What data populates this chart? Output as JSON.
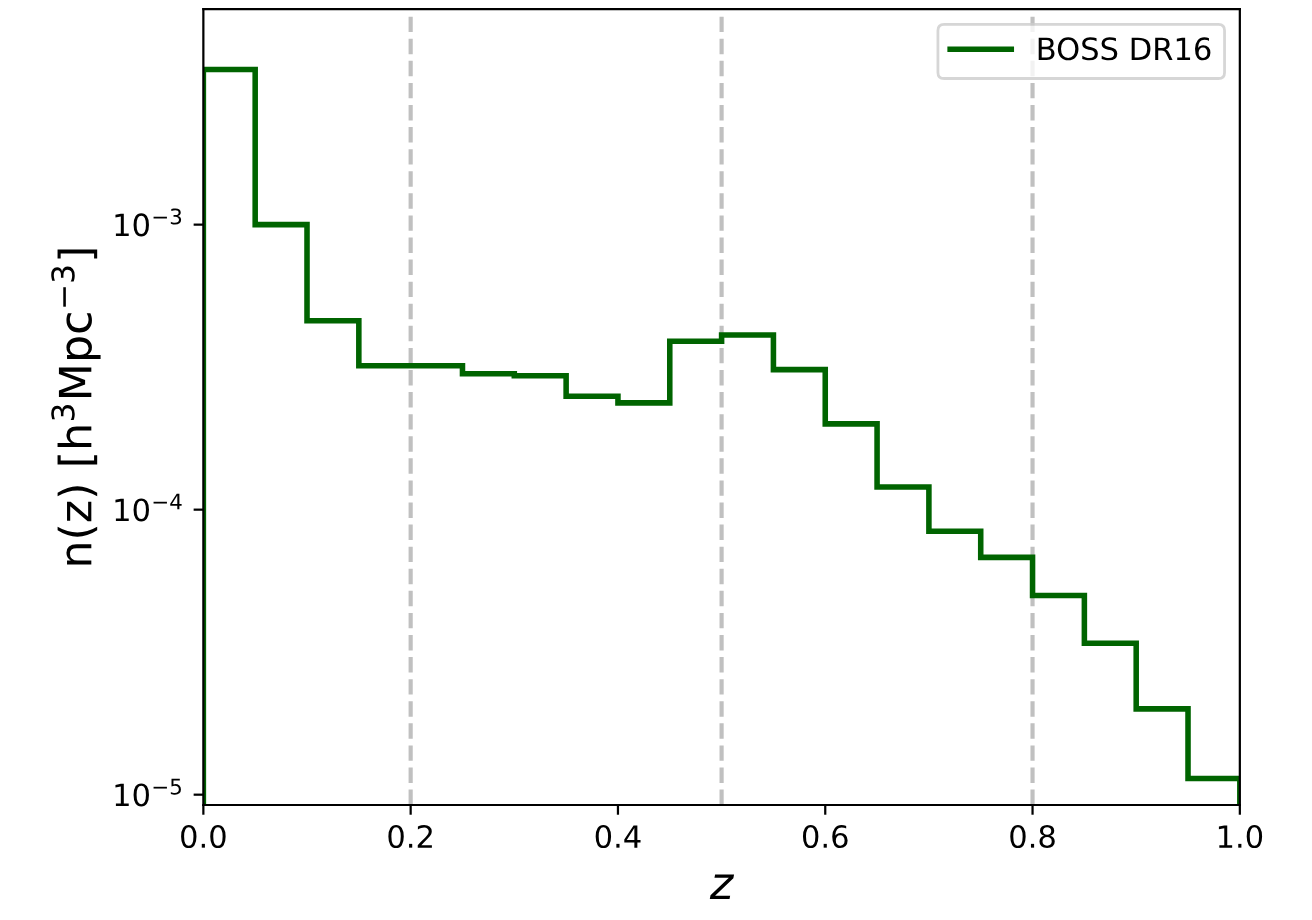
{
  "chart_data": {
    "type": "histogram",
    "xlabel": "z",
    "ylabel": "n(z) [h$^{3}$Mpc$^{−3}$]",
    "bins": [
      0.0,
      0.05,
      0.1,
      0.15,
      0.2,
      0.25,
      0.3,
      0.35,
      0.4,
      0.45,
      0.5,
      0.55,
      0.6,
      0.65,
      0.7,
      0.75,
      0.8,
      0.85,
      0.9,
      0.95,
      1.0
    ],
    "series": [
      {
        "name": "BOSS DR16",
        "color": "#006400",
        "values": [
          0.0035,
          0.001,
          0.00046,
          0.00032,
          0.00032,
          0.0003,
          0.000295,
          0.00025,
          0.000237,
          0.00039,
          0.00041,
          0.00031,
          0.0002,
          0.00012,
          8.4e-05,
          6.8e-05,
          5e-05,
          3.4e-05,
          2e-05,
          1.14e-05
        ]
      }
    ],
    "xlim": [
      0.0,
      1.0
    ],
    "ylim": [
      9.2e-06,
      0.0057
    ],
    "xticks": [
      {
        "value": 0.0,
        "label": "0.0"
      },
      0.2,
      0.4,
      0.6,
      0.8,
      {
        "value": 1.0,
        "label": "1.0"
      }
    ],
    "yticks": [
      {
        "value": 1e-05,
        "label": "10$^{−5}$"
      },
      {
        "value": 0.0001,
        "label": "10$^{−4}$"
      },
      {
        "value": 0.001,
        "label": "10$^{−3}$"
      }
    ],
    "log": "y",
    "grid": false,
    "legend": "top right",
    "ref_lines": [
      {
        "axis": "x",
        "value": 0.2,
        "color": "#c0c0c0",
        "line_style": "dashed"
      },
      {
        "axis": "x",
        "value": 0.5,
        "color": "#c0c0c0",
        "line_style": "dashed"
      },
      {
        "axis": "x",
        "value": 0.8,
        "color": "#c0c0c0",
        "line_style": "dashed"
      }
    ]
  }
}
